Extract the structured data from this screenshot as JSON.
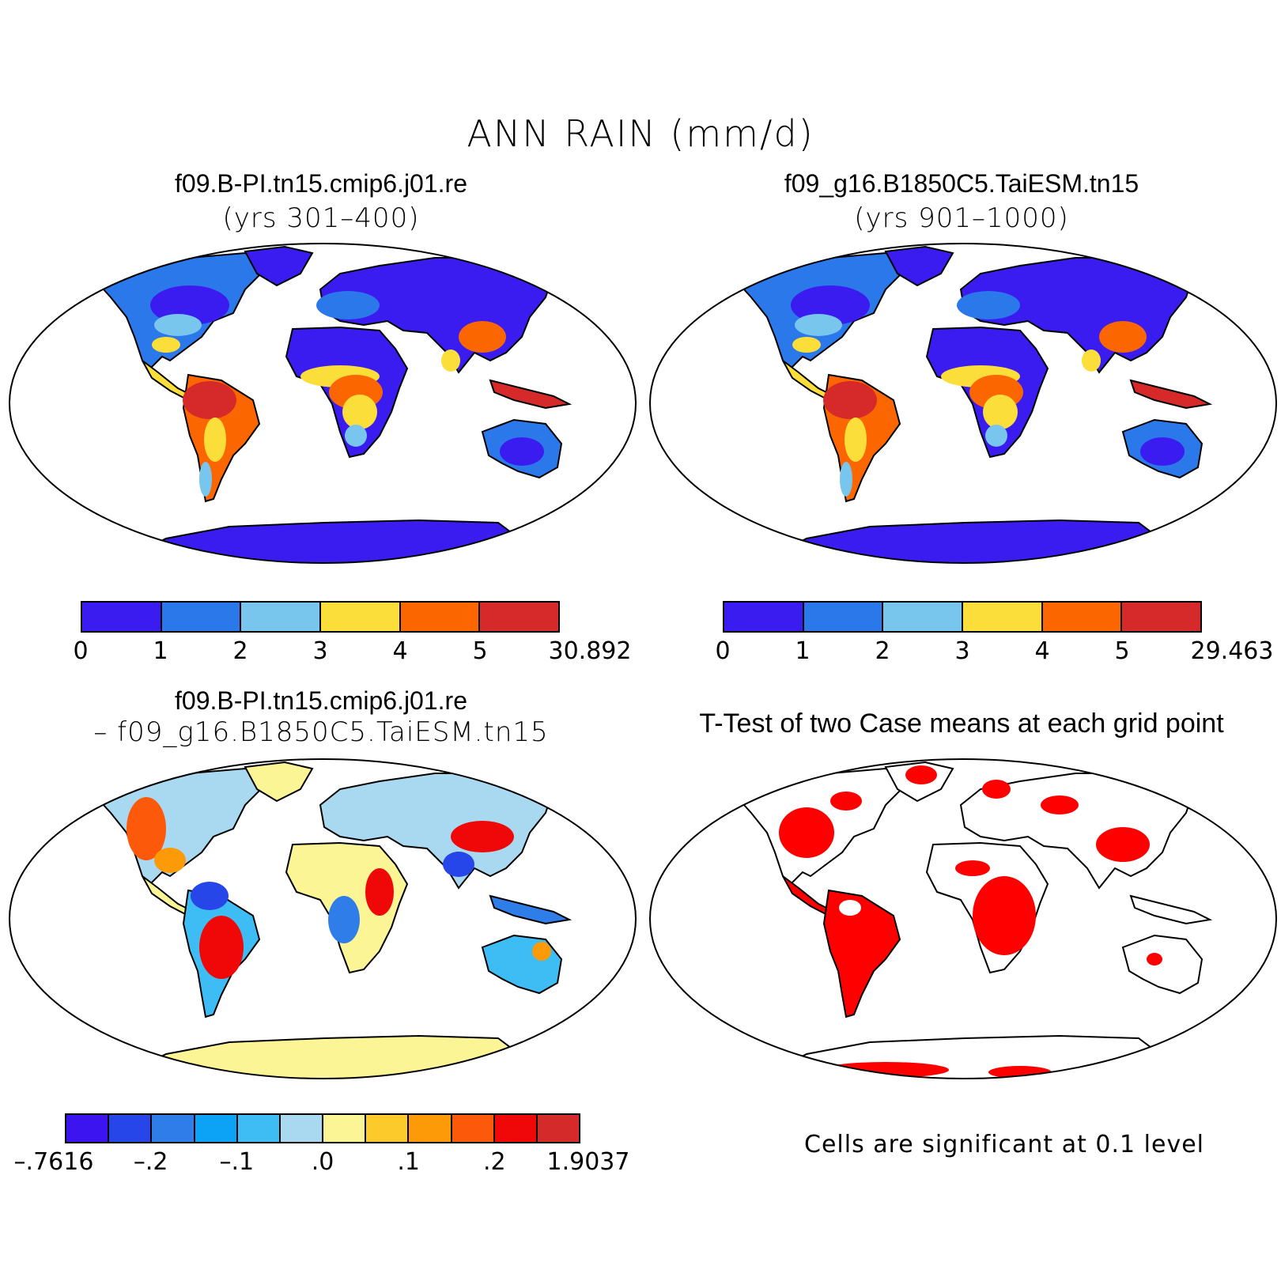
{
  "title": "ANN RAIN (mm/d)",
  "panels": {
    "case1": {
      "title": "f09.B-PI.tn15.cmip6.j01.re",
      "subtitle": "(yrs 301–400)"
    },
    "case2": {
      "title": "f09_g16.B1850C5.TaiESM.tn15",
      "subtitle": "(yrs 901–1000)"
    },
    "diff": {
      "title": "f09.B-PI.tn15.cmip6.j01.re",
      "subtitle": "– f09_g16.B1850C5.TaiESM.tn15"
    },
    "ttest": {
      "title": "T-Test of two Case means at each grid point",
      "note": "Cells are significant at 0.1 level"
    }
  },
  "colorbars": {
    "case1": {
      "colors": [
        "#3a1cf0",
        "#2a78ea",
        "#78c5ee",
        "#fcde3a",
        "#fc6600",
        "#d62a2a"
      ],
      "labels": [
        "0",
        "1",
        "2",
        "3",
        "4",
        "5",
        "30.892"
      ]
    },
    "case2": {
      "colors": [
        "#3a1cf0",
        "#2a78ea",
        "#78c5ee",
        "#fcde3a",
        "#fc6600",
        "#d62a2a"
      ],
      "labels": [
        "0",
        "1",
        "2",
        "3",
        "4",
        "5",
        "29.463"
      ]
    },
    "diff": {
      "colors": [
        "#3c14f0",
        "#2646ea",
        "#2f7de8",
        "#0ca2f5",
        "#3ebdf5",
        "#a9d9f0",
        "#fcf596",
        "#fcca2a",
        "#fc9a08",
        "#fc5a0a",
        "#f00808",
        "#d42a2a"
      ],
      "labels": [
        "–.7616",
        "–.2",
        "–.1",
        ".0",
        ".1",
        ".2",
        "1.9037"
      ]
    }
  },
  "significance_color": "#ff0000"
}
